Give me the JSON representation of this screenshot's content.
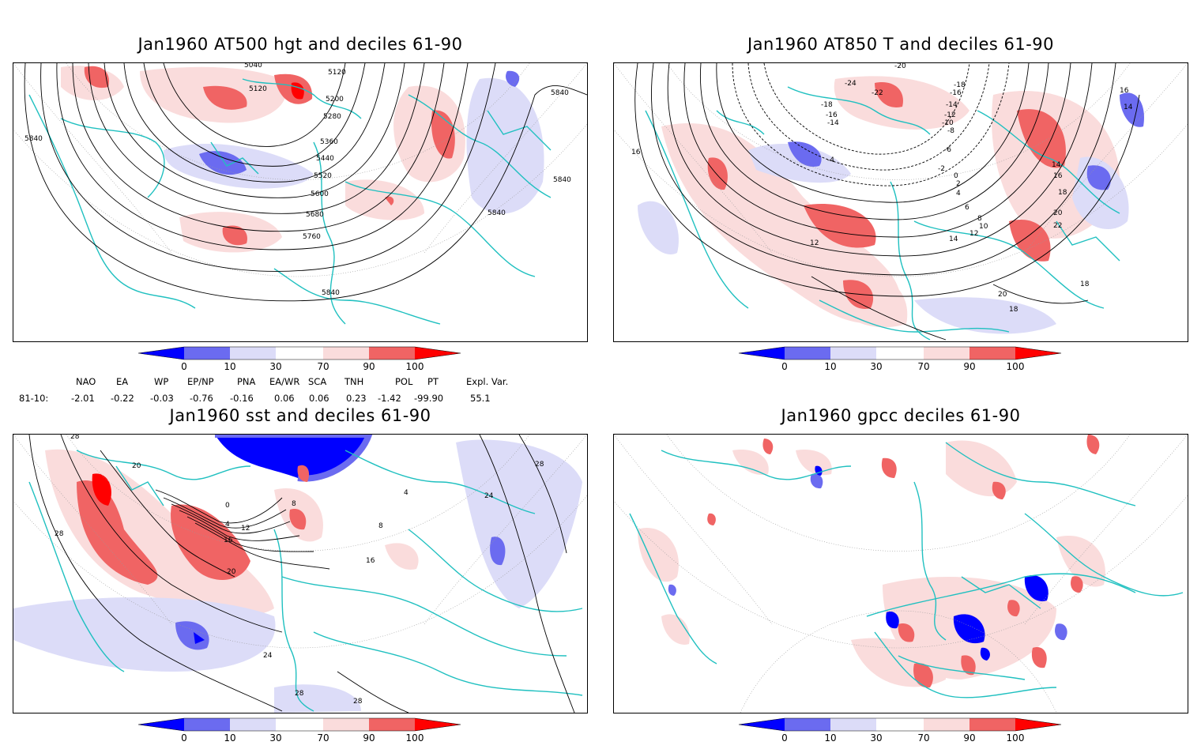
{
  "panels": [
    {
      "title": "Jan1960 AT500 hgt and deciles 61-90",
      "contour_labels": [
        "5040",
        "5120",
        "5120",
        "5200",
        "5280",
        "5360",
        "5440",
        "5520",
        "5600",
        "5680",
        "5760",
        "5840",
        "5840",
        "5840",
        "5840",
        "5840"
      ]
    },
    {
      "title": "Jan1960 AT850 T and deciles 61-90",
      "contour_labels": [
        "-24",
        "-22",
        "-20",
        "-18",
        "-18",
        "-16",
        "-16",
        "-14",
        "-14",
        "-12",
        "-10",
        "-8",
        "-6",
        "-4",
        "-2",
        "0",
        "2",
        "4",
        "6",
        "8",
        "10",
        "12",
        "14",
        "14",
        "16",
        "16",
        "16",
        "18",
        "18",
        "18",
        "20",
        "20",
        "22",
        "12",
        "14"
      ]
    },
    {
      "title": "Jan1960 sst and deciles 61-90",
      "contour_labels": [
        "28",
        "20",
        "28",
        "0",
        "4",
        "8",
        "12",
        "16",
        "20",
        "24",
        "28",
        "28",
        "28",
        "24",
        "16",
        "8",
        "4"
      ]
    },
    {
      "title": "Jan1960 gpcc deciles 61-90",
      "contour_labels": []
    }
  ],
  "colorbar": {
    "labels": [
      "0",
      "10",
      "30",
      "70",
      "90",
      "100"
    ],
    "colors": [
      "#0000ff",
      "#6b6bf0",
      "#dcdcf8",
      "#ffffff",
      "#fadcdc",
      "#f06464",
      "#ff0000"
    ]
  },
  "indices": {
    "headers": [
      "NAO",
      "EA",
      "WP",
      "EP/NP",
      "PNA",
      "EA/WR",
      "SCA",
      "TNH",
      "POL",
      "PT",
      "Expl. Var."
    ],
    "row_label": "81-10:",
    "values": [
      "-2.01",
      "-0.22",
      "-0.03",
      "-0.76",
      "-0.16",
      "0.06",
      "0.06",
      "0.23",
      "-1.42",
      "-99.90",
      "55.1"
    ]
  }
}
